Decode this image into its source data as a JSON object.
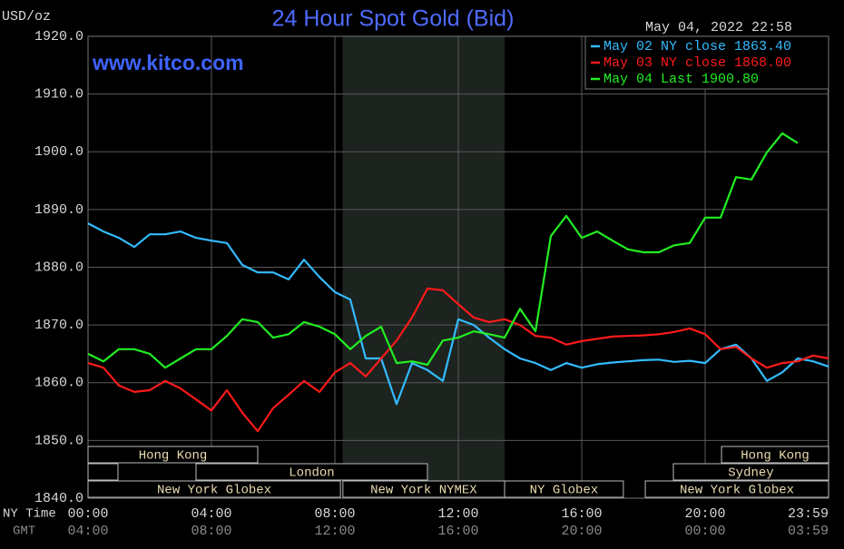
{
  "chart_data": {
    "type": "line",
    "title": "24 Hour Spot Gold (Bid)",
    "subtitle": "www.kitco.com",
    "y_axis_label": "USD/oz",
    "timestamp": "May 04, 2022 22:58",
    "x_row_labels": [
      "NY Time",
      "GMT"
    ],
    "x": [
      0,
      0.5,
      1,
      1.5,
      2,
      2.5,
      3,
      3.5,
      4,
      4.5,
      5,
      5.5,
      6,
      6.5,
      7,
      7.5,
      8,
      8.5,
      9,
      9.5,
      10,
      10.5,
      11,
      11.5,
      12,
      12.5,
      13,
      13.5,
      14,
      14.5,
      15,
      15.5,
      16,
      16.5,
      17,
      17.5,
      18,
      18.5,
      19,
      19.5,
      20,
      20.5,
      21,
      21.5,
      22,
      22.5,
      23,
      23.5,
      24
    ],
    "series": [
      {
        "name": "May 02 NY close 1863.40",
        "color": "#33bbff",
        "values": [
          1887.6,
          1886.2,
          1885.1,
          1883.5,
          1885.7,
          1885.7,
          1886.2,
          1885.1,
          1884.6,
          1884.2,
          1880.4,
          1879.1,
          1879.1,
          1877.9,
          1881.3,
          1878.3,
          1875.7,
          1874.4,
          1864.2,
          1864.2,
          1856.3,
          1863.4,
          1862.2,
          1860.3,
          1871.0,
          1870.0,
          1867.8,
          1865.8,
          1864.2,
          1863.4,
          1862.2,
          1863.4,
          1862.6,
          1863.2,
          1863.5,
          1863.7,
          1863.9,
          1864.0,
          1863.6,
          1863.8,
          1863.4,
          1865.8,
          1866.6,
          1864.2,
          1860.3,
          1861.8,
          1864.2,
          1863.7,
          1862.8
        ]
      },
      {
        "name": "May 03 NY close 1868.00",
        "color": "#ff1a1a",
        "values": [
          1863.4,
          1862.6,
          1859.5,
          1858.4,
          1858.7,
          1860.3,
          1859.0,
          1857.1,
          1855.2,
          1858.7,
          1854.8,
          1851.6,
          1855.6,
          1857.9,
          1860.3,
          1858.4,
          1861.8,
          1863.4,
          1861.1,
          1864.2,
          1867.3,
          1871.3,
          1876.3,
          1876.0,
          1873.6,
          1871.3,
          1870.5,
          1871.0,
          1870.0,
          1868.1,
          1867.8,
          1866.6,
          1867.2,
          1867.6,
          1868.0,
          1868.1,
          1868.2,
          1868.4,
          1868.8,
          1869.4,
          1868.4,
          1865.8,
          1866.2,
          1864.2,
          1862.6,
          1863.4,
          1863.7,
          1864.7,
          1864.2
        ]
      },
      {
        "name": "May 04 Last 1900.80",
        "color": "#22ee22",
        "values": [
          1865.0,
          1863.7,
          1865.8,
          1865.8,
          1865.0,
          1862.6,
          1864.2,
          1865.8,
          1865.8,
          1868.1,
          1871.0,
          1870.5,
          1867.8,
          1868.4,
          1870.5,
          1869.7,
          1868.4,
          1865.8,
          1868.1,
          1869.7,
          1863.4,
          1863.7,
          1863.1,
          1867.3,
          1867.8,
          1868.9,
          1868.4,
          1867.8,
          1872.8,
          1868.9,
          1885.4,
          1888.9,
          1885.1,
          1886.2,
          1884.6,
          1883.1,
          1882.6,
          1882.6,
          1883.8,
          1884.2,
          1888.6,
          1888.6,
          1895.6,
          1895.2,
          1899.9,
          1903.2,
          1901.5,
          null,
          null
        ]
      }
    ],
    "xlim": [
      0,
      24
    ],
    "xticks": [
      {
        "value": 0,
        "label": "00:00"
      },
      {
        "value": 4,
        "label": "04:00"
      },
      {
        "value": 8,
        "label": "08:00"
      },
      {
        "value": 12,
        "label": "12:00"
      },
      {
        "value": 16,
        "label": "16:00"
      },
      {
        "value": 20,
        "label": "20:00"
      },
      {
        "value": 23.98,
        "label": "23:59"
      }
    ],
    "gmt_labels": [
      "04:00",
      "08:00",
      "12:00",
      "16:00",
      "20:00",
      "00:00",
      "03:59"
    ],
    "ylim": [
      1840,
      1920
    ],
    "yticks": [
      {
        "value": 1840,
        "label": "1840.0"
      },
      {
        "value": 1850,
        "label": "1850.0"
      },
      {
        "value": 1860,
        "label": "1860.0"
      },
      {
        "value": 1870,
        "label": "1870.0"
      },
      {
        "value": 1880,
        "label": "1880.0"
      },
      {
        "value": 1890,
        "label": "1890.0"
      },
      {
        "value": 1900,
        "label": "1900.0"
      },
      {
        "value": 1910,
        "label": "1910.0"
      },
      {
        "value": 1920,
        "label": "1920.0"
      }
    ],
    "grid": true,
    "legend": "top-right",
    "shaded_range": [
      8.25,
      13.5
    ],
    "sessions": [
      {
        "label": "Hong Kong",
        "row": 0,
        "start": 0,
        "end": 5.5
      },
      {
        "label": "Hong Kong",
        "row": 0,
        "start": 20.53,
        "end": 24
      },
      {
        "label": null,
        "row": 1,
        "start": 0,
        "end": 0.97
      },
      {
        "label": "London",
        "row": 1,
        "start": 3.5,
        "end": 11.0
      },
      {
        "label": "Sydney",
        "row": 1,
        "start": 18.97,
        "end": 24
      },
      {
        "label": "New York Globex",
        "row": 2,
        "start": 0,
        "end": 8.18
      },
      {
        "label": "New York NYMEX",
        "row": 2,
        "start": 8.26,
        "end": 13.5
      },
      {
        "label": "NY Globex",
        "row": 2,
        "start": 13.5,
        "end": 17.35
      },
      {
        "label": "New York Globex",
        "row": 2,
        "start": 18.06,
        "end": 24
      }
    ]
  }
}
